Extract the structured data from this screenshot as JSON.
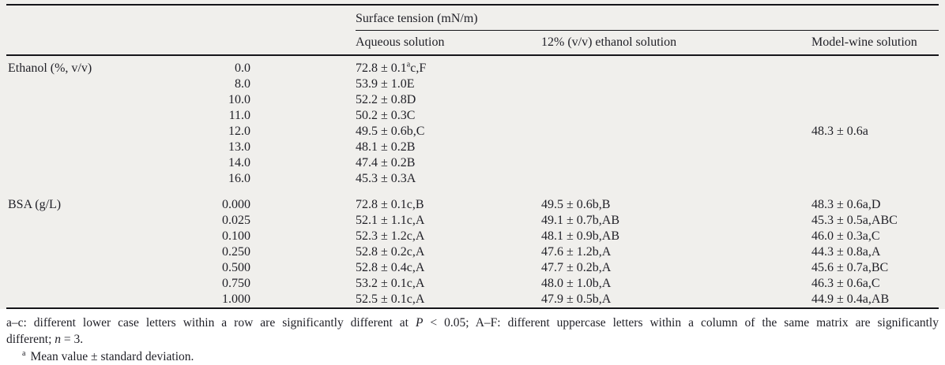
{
  "table": {
    "group_header": "Surface tension (mN/m)",
    "col_headers": [
      "Aqueous solution",
      "12% (v/v) ethanol solution",
      "Model-wine solution"
    ],
    "sections": [
      {
        "label": "Ethanol (%, v/v)",
        "rows": [
          {
            "conc": "0.0",
            "aq_pre": "72.8 ± 0.1",
            "aq_sup": "a",
            "aq_post": "c,F",
            "et": "",
            "mw": ""
          },
          {
            "conc": "8.0",
            "aq": "53.9 ± 1.0E",
            "et": "",
            "mw": ""
          },
          {
            "conc": "10.0",
            "aq": "52.2 ± 0.8D",
            "et": "",
            "mw": ""
          },
          {
            "conc": "11.0",
            "aq": "50.2 ± 0.3C",
            "et": "",
            "mw": ""
          },
          {
            "conc": "12.0",
            "aq": "49.5 ± 0.6b,C",
            "et": "",
            "mw": "48.3 ± 0.6a"
          },
          {
            "conc": "13.0",
            "aq": "48.1 ± 0.2B",
            "et": "",
            "mw": ""
          },
          {
            "conc": "14.0",
            "aq": "47.4 ± 0.2B",
            "et": "",
            "mw": ""
          },
          {
            "conc": "16.0",
            "aq": "45.3 ± 0.3A",
            "et": "",
            "mw": ""
          }
        ]
      },
      {
        "label": "BSA (g/L)",
        "rows": [
          {
            "conc": "0.000",
            "aq": "72.8 ± 0.1c,B",
            "et": "49.5 ± 0.6b,B",
            "mw": "48.3 ± 0.6a,D"
          },
          {
            "conc": "0.025",
            "aq": "52.1 ± 1.1c,A",
            "et": "49.1 ± 0.7b,AB",
            "mw": "45.3 ± 0.5a,ABC"
          },
          {
            "conc": "0.100",
            "aq": "52.3 ± 1.2c,A",
            "et": "48.1 ± 0.9b,AB",
            "mw": "46.0 ± 0.3a,C"
          },
          {
            "conc": "0.250",
            "aq": "52.8 ± 0.2c,A",
            "et": "47.6 ± 1.2b,A",
            "mw": "44.3 ± 0.8a,A"
          },
          {
            "conc": "0.500",
            "aq": "52.8 ± 0.4c,A",
            "et": "47.7 ± 0.2b,A",
            "mw": "45.6 ± 0.7a,BC"
          },
          {
            "conc": "0.750",
            "aq": "53.2 ± 0.1c,A",
            "et": "48.0 ± 1.0b,A",
            "mw": "46.3 ± 0.6a,C"
          },
          {
            "conc": "1.000",
            "aq": "52.5 ± 0.1c,A",
            "et": "47.9 ± 0.5b,A",
            "mw": "44.9 ± 0.4a,AB"
          }
        ]
      }
    ]
  },
  "footnotes": {
    "note1": {
      "part1": "a–c: different lower case letters within a row are significantly different at ",
      "p_var": "P",
      "part2": " < 0.05; A–F: different uppercase letters within a column of the same matrix are significantly",
      "line2_pre": "different; ",
      "n_var": "n",
      "line2_post": " = 3."
    },
    "note2": {
      "sup": "a",
      "text": "Mean value ± standard deviation."
    }
  },
  "colors": {
    "table_background": "#f0efec",
    "rule": "#151519",
    "text": "#1f1f26"
  }
}
